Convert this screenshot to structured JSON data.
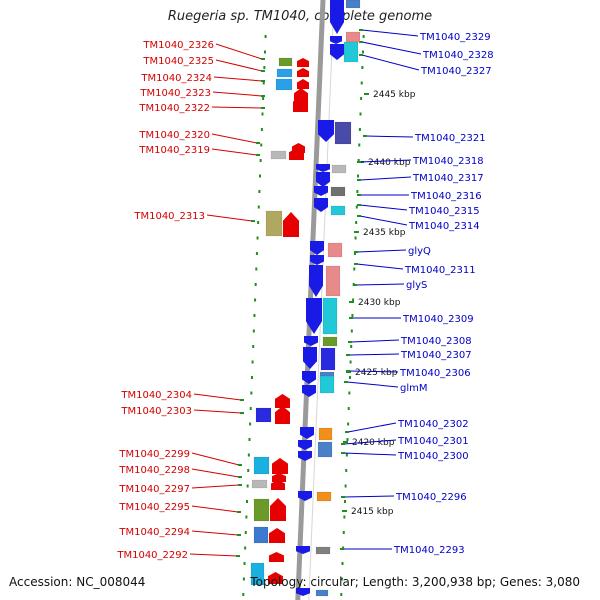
{
  "title": "Ruegeria sp. TM1040, complete genome",
  "accession": "Accession: NC_008044",
  "summary": "Topology: circular; Length: 3,200,938 bp; Genes: 3,080",
  "colors": {
    "left_label": "#d40000",
    "right_label": "#0000c8",
    "backbone": "#9a9a9a",
    "tick": "#1f8f1f",
    "reverse_strand_arrow": "#1a1ae6",
    "forward_strand_arrow": "#e60000"
  },
  "scale_labels": [
    {
      "label": "2445 kbp"
    },
    {
      "label": "2440 kbp"
    },
    {
      "label": "2435 kbp"
    },
    {
      "label": "2430 kbp"
    },
    {
      "label": "2425 kbp"
    },
    {
      "label": "2420 kbp"
    },
    {
      "label": "2415 kbp"
    }
  ],
  "left_genes": [
    {
      "name": "TM1040_2326",
      "box_color": "#6b9a2a"
    },
    {
      "name": "TM1040_2325",
      "box_color": "#2aa0e8"
    },
    {
      "name": "TM1040_2324",
      "box_color": "#2aa0e8"
    },
    {
      "name": "TM1040_2323",
      "box_color": ""
    },
    {
      "name": "TM1040_2322",
      "box_color": ""
    },
    {
      "name": "TM1040_2320",
      "box_color": ""
    },
    {
      "name": "TM1040_2319",
      "box_color": "#b8b8b8"
    },
    {
      "name": "TM1040_2313",
      "box_color": "#b0a860"
    },
    {
      "name": "TM1040_2304",
      "box_color": ""
    },
    {
      "name": "TM1040_2303",
      "box_color": "#2a2ae0"
    },
    {
      "name": "TM1040_2299",
      "box_color": "#1ab0e0"
    },
    {
      "name": "TM1040_2298",
      "box_color": ""
    },
    {
      "name": "TM1040_2297",
      "box_color": "#b8b8b8"
    },
    {
      "name": "TM1040_2295",
      "box_color": "#6b9a2a"
    },
    {
      "name": "TM1040_2294",
      "box_color": "#3a7ad0"
    },
    {
      "name": "TM1040_2292",
      "box_color": ""
    }
  ],
  "right_genes": [
    {
      "name": "TM1040_2329",
      "box_color": "#4a80c8"
    },
    {
      "name": "TM1040_2328",
      "box_color": "#e88a8a"
    },
    {
      "name": "TM1040_2327",
      "box_color": "#20c8d8"
    },
    {
      "name": "TM1040_2321",
      "box_color": "#4a4aa8"
    },
    {
      "name": "TM1040_2318",
      "box_color": "#b8b8b8"
    },
    {
      "name": "TM1040_2317",
      "box_color": ""
    },
    {
      "name": "TM1040_2316",
      "box_color": "#707070"
    },
    {
      "name": "TM1040_2315",
      "box_color": "#20c8d8"
    },
    {
      "name": "TM1040_2314",
      "box_color": ""
    },
    {
      "name": "glyQ",
      "box_color": "#e88a8a"
    },
    {
      "name": "TM1040_2311",
      "box_color": ""
    },
    {
      "name": "glyS",
      "box_color": "#e88a8a"
    },
    {
      "name": "TM1040_2309",
      "box_color": "#20c8d8"
    },
    {
      "name": "TM1040_2308",
      "box_color": "#6b9a2a"
    },
    {
      "name": "TM1040_2307",
      "box_color": "#2a2ae0"
    },
    {
      "name": "TM1040_2306",
      "box_color": "#4a80c8"
    },
    {
      "name": "glmM",
      "box_color": "#20c8d8"
    },
    {
      "name": "TM1040_2302",
      "box_color": "#f0901a"
    },
    {
      "name": "TM1040_2301",
      "box_color": ""
    },
    {
      "name": "TM1040_2300",
      "box_color": "#4a80c8"
    },
    {
      "name": "TM1040_2296",
      "box_color": "#f0901a"
    },
    {
      "name": "TM1040_2293",
      "box_color": "#808080"
    }
  ]
}
